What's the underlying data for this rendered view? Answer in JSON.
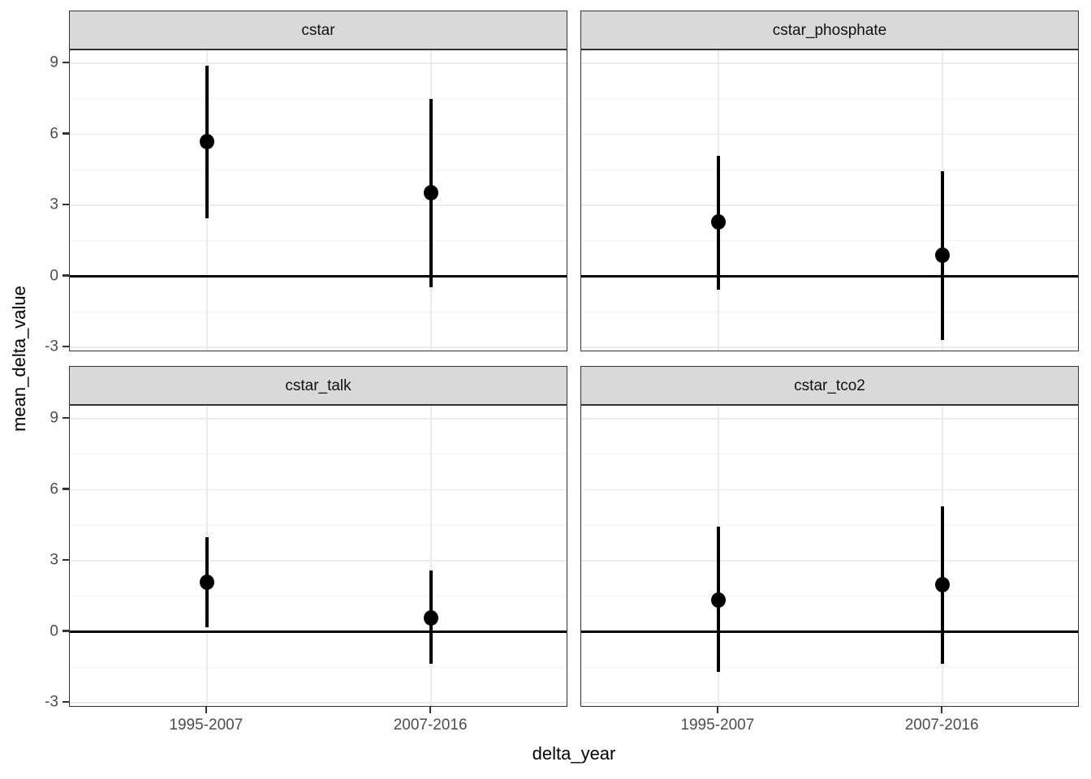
{
  "chart_data": {
    "type": "pointrange",
    "title": "",
    "xlabel": "delta_year",
    "ylabel": "mean_delta_value",
    "categories": [
      "1995-2007",
      "2007-2016"
    ],
    "y_ticks": [
      9,
      6,
      3,
      0,
      -3
    ],
    "y_minor_ticks": [
      7.5,
      4.5,
      1.5,
      -1.5
    ],
    "ylim": [
      -3.2,
      9.55
    ],
    "zero_line": true,
    "grid": "major+minor",
    "legend_position": "none",
    "facets": [
      {
        "label": "cstar",
        "points": [
          {
            "x": "1995-2007",
            "y": 5.7,
            "ymin": 2.45,
            "ymax": 8.9
          },
          {
            "x": "2007-2016",
            "y": 3.55,
            "ymin": -0.45,
            "ymax": 7.5
          }
        ]
      },
      {
        "label": "cstar_phosphate",
        "points": [
          {
            "x": "1995-2007",
            "y": 2.3,
            "ymin": -0.55,
            "ymax": 5.1
          },
          {
            "x": "2007-2016",
            "y": 0.9,
            "ymin": -2.7,
            "ymax": 4.45
          }
        ]
      },
      {
        "label": "cstar_talk",
        "points": [
          {
            "x": "1995-2007",
            "y": 2.1,
            "ymin": 0.2,
            "ymax": 4.0
          },
          {
            "x": "2007-2016",
            "y": 0.6,
            "ymin": -1.35,
            "ymax": 2.6
          }
        ]
      },
      {
        "label": "cstar_tco2",
        "points": [
          {
            "x": "1995-2007",
            "y": 1.35,
            "ymin": -1.7,
            "ymax": 4.45
          },
          {
            "x": "2007-2016",
            "y": 2.0,
            "ymin": -1.35,
            "ymax": 5.3
          }
        ]
      }
    ]
  },
  "colors": {
    "background": "#ffffff",
    "strip_background": "#d9d9d9",
    "panel_border": "#333333",
    "grid_major": "#ebebeb",
    "grid_minor": "#f3f3f3",
    "tick_label": "#4d4d4d",
    "point": "#000000",
    "zero_line": "#000000"
  }
}
